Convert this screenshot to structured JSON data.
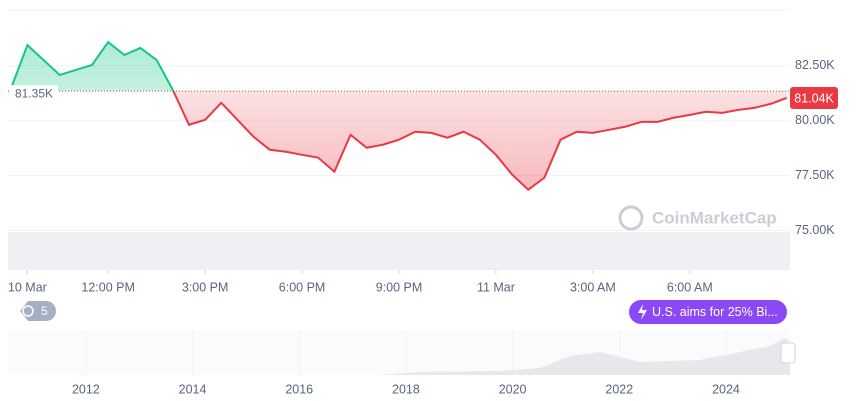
{
  "chart_data": {
    "type": "line",
    "x": [
      9.0,
      9.5,
      10.0,
      10.5,
      11.0,
      11.5,
      12.0,
      12.5,
      13.0,
      13.5,
      14.0,
      14.5,
      15.0,
      15.5,
      16.0,
      16.5,
      17.0,
      17.5,
      18.0,
      18.5,
      19.0,
      19.5,
      20.0,
      20.5,
      21.0,
      21.5,
      22.0,
      22.5,
      23.0,
      23.5,
      24.0,
      24.5,
      25.0,
      25.5,
      26.0,
      26.5,
      27.0,
      27.5,
      28.0,
      28.5,
      29.0,
      29.5,
      30.0,
      30.5,
      31.0,
      31.5,
      32.0,
      32.5,
      33.0
    ],
    "values": [
      81500,
      83450,
      82770,
      82090,
      82320,
      82545,
      83590,
      83000,
      83320,
      82770,
      81410,
      79820,
      80045,
      80820,
      80045,
      79270,
      78680,
      78590,
      78450,
      78320,
      77680,
      79360,
      78770,
      78910,
      79140,
      79500,
      79450,
      79230,
      79500,
      79140,
      78450,
      77550,
      76860,
      77410,
      79140,
      79500,
      79450,
      79590,
      79730,
      79950,
      79950,
      80140,
      80270,
      80410,
      80360,
      80500,
      80590,
      80770,
      81040
    ],
    "up_color": "#16c784",
    "down_color": "#ea3943",
    "baseline": {
      "value": 81350,
      "label": "81.35K"
    },
    "last_price": {
      "value": 81040,
      "label": "81.04K"
    },
    "xlim": [
      8.9,
      33.1
    ],
    "xticks": [
      {
        "value": 9.5,
        "label": "10 Mar"
      },
      {
        "value": 12,
        "label": "12:00 PM"
      },
      {
        "value": 15,
        "label": "3:00 PM"
      },
      {
        "value": 18,
        "label": "6:00 PM"
      },
      {
        "value": 21,
        "label": "9:00 PM"
      },
      {
        "value": 24,
        "label": "11 Mar"
      },
      {
        "value": 27,
        "label": "3:00 AM"
      },
      {
        "value": 30,
        "label": "6:00 AM"
      }
    ],
    "ylim": [
      73200,
      85050
    ],
    "yticks": [
      {
        "value": 75000,
        "label": "75.00K"
      },
      {
        "value": 77500,
        "label": "77.50K"
      },
      {
        "value": 80000,
        "label": "80.00K"
      },
      {
        "value": 82500,
        "label": "82.50K"
      }
    ],
    "grid": true,
    "watermark": "CoinMarketCap",
    "history_badge": "5",
    "event_badge": "U.S. aims for 25% Bi...",
    "overview": {
      "xlim": [
        2010.54,
        2025.2
      ],
      "xticks": [
        2012,
        2014,
        2016,
        2018,
        2020,
        2022,
        2024
      ]
    }
  }
}
